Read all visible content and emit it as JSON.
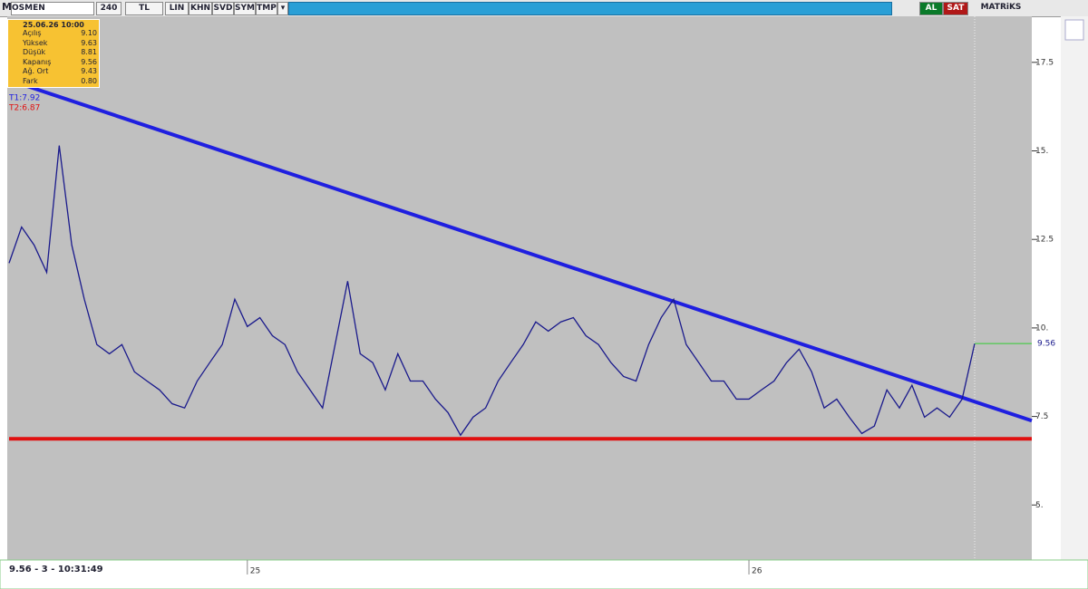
{
  "toolbar": {
    "logo": "M",
    "symbol": "OSMEN",
    "period": "240",
    "currency": "TL",
    "buttons": [
      "LIN",
      "KHN",
      "SVD",
      "SYM",
      "TMP"
    ],
    "buy": "AL",
    "sell": "SAT",
    "brand": "MATRiKS"
  },
  "info": {
    "date": "25.06.26 10:00",
    "rows": [
      [
        "Açılış",
        "9.10"
      ],
      [
        "Yüksek",
        "9.63"
      ],
      [
        "Düşük",
        "8.81"
      ],
      [
        "Kapanış",
        "9.56"
      ],
      [
        "Ağ. Ort",
        "9.43"
      ],
      [
        "Fark",
        "0.80"
      ]
    ]
  },
  "status": "9.56 - 3 - 10:31:49",
  "chart_data": {
    "type": "line",
    "categories": [
      null,
      null,
      null,
      null,
      null,
      null,
      null,
      null,
      null,
      null,
      null,
      null,
      null,
      null,
      null,
      null,
      null,
      null,
      null,
      "25",
      null,
      null,
      null,
      null,
      null,
      null,
      null,
      null,
      null,
      null,
      null,
      null,
      null,
      null,
      null,
      null,
      null,
      null,
      null,
      null,
      null,
      null,
      null,
      null,
      null,
      null,
      null,
      null,
      null,
      null,
      null,
      null,
      null,
      null,
      null,
      null,
      null,
      null,
      null,
      "26",
      null,
      null,
      null,
      null,
      null,
      null,
      null,
      null,
      null,
      null,
      null,
      null,
      null,
      null,
      null,
      null,
      null,
      null
    ],
    "series": [
      {
        "color": "#1a1a8c",
        "values": [
          11.83,
          12.85,
          12.34,
          11.57,
          15.15,
          12.34,
          10.81,
          9.53,
          9.27,
          9.53,
          8.76,
          8.5,
          8.25,
          7.86,
          7.74,
          8.5,
          9.02,
          9.53,
          10.81,
          10.04,
          10.29,
          9.78,
          9.53,
          8.76,
          8.25,
          7.74,
          9.53,
          11.32,
          9.27,
          9.02,
          8.25,
          9.27,
          8.5,
          8.5,
          7.99,
          7.61,
          6.97,
          7.48,
          7.74,
          8.5,
          9.02,
          9.53,
          10.17,
          9.91,
          10.17,
          10.29,
          9.78,
          9.53,
          9.02,
          8.63,
          8.5,
          9.53,
          10.29,
          10.81,
          9.53,
          9.02,
          8.5,
          8.5,
          7.99,
          7.99,
          8.25,
          8.5,
          9.02,
          9.4,
          8.76,
          7.74,
          7.99,
          7.48,
          7.02,
          7.23,
          8.25,
          7.74,
          8.38,
          7.48,
          7.74,
          7.48,
          7.99,
          9.56
        ]
      }
    ],
    "trendlines": [
      {
        "label": "T1:7.92",
        "start": 17.0,
        "end": 7.38,
        "color": "#1f1fe0"
      },
      {
        "label": "T2:6.87",
        "start": 6.87,
        "end": 6.87,
        "color": "#e01010"
      }
    ],
    "last_value": 9.56,
    "last_color": "#33cc33",
    "ylim": [
      3.6,
      18.8
    ],
    "yticks": [
      {
        "value": 5,
        "label": "5."
      },
      7.5,
      {
        "value": 10,
        "label": "10."
      },
      12.5,
      {
        "value": 15,
        "label": "15."
      },
      17.5
    ]
  }
}
